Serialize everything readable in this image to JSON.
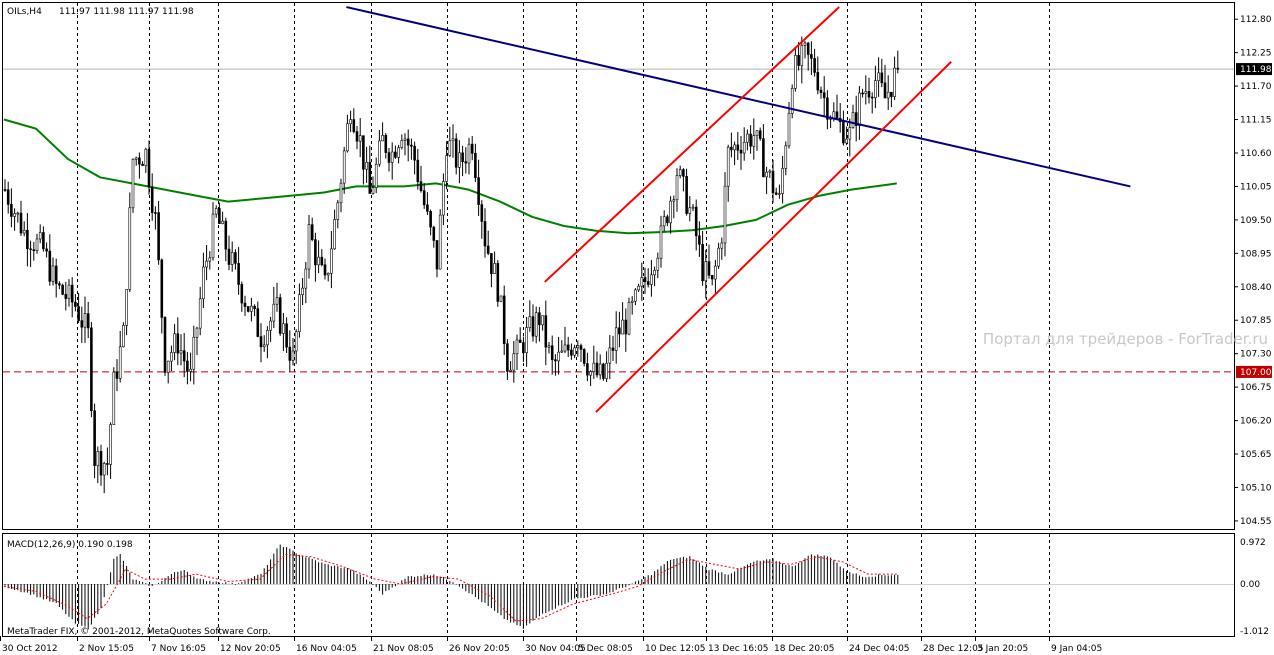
{
  "header": {
    "symbol": "OILs,H4",
    "ohlc": "111.97 111.98 111.97 111.98"
  },
  "macd_header": "MACD(12,26,9) 0.190 0.198",
  "copyright": "MetaTrader FIX, © 2001-2012, MetaQuotes Software Corp.",
  "watermark": "Портал для трейдеров - ForTrader.ru",
  "colors": {
    "background": "#ffffff",
    "candles": "#000000",
    "ma": "#008000",
    "trendline": "#000080",
    "channel": "#ff0000",
    "level": "#c00000",
    "macd_signal": "#ff0000"
  },
  "chart_data": [
    {
      "type": "candlestick",
      "title": "OILs,H4",
      "ylim": [
        104.45,
        113.05
      ],
      "y_ticks": [
        "112.80",
        "112.25",
        "111.70",
        "111.15",
        "110.60",
        "110.05",
        "109.50",
        "108.95",
        "108.40",
        "107.85",
        "107.30",
        "106.75",
        "106.20",
        "105.65",
        "105.10",
        "104.55"
      ],
      "current_price": "111.98",
      "level_line": {
        "label": "107.00",
        "value": 107.0
      },
      "x_ticks": [
        "30 Oct 2012",
        "2 Nov 15:05",
        "7 Nov 16:05",
        "12 Nov 20:05",
        "16 Nov 04:05",
        "21 Nov 08:05",
        "26 Nov 20:05",
        "30 Nov 04:05",
        "5 Dec 08:05",
        "10 Dec 12:05",
        "13 Dec 16:05",
        "18 Dec 20:05",
        "24 Dec 04:05",
        "28 Dec 12:05",
        "3 Jan 20:05",
        "9 Jan 04:05"
      ],
      "close_path": [
        [
          0,
          110.0
        ],
        [
          6,
          109.3
        ],
        [
          12,
          109.0
        ],
        [
          16,
          108.4
        ],
        [
          22,
          108.1
        ],
        [
          26,
          107.6
        ],
        [
          28,
          105.6
        ],
        [
          32,
          105.5
        ],
        [
          34,
          106.8
        ],
        [
          37,
          107.6
        ],
        [
          40,
          110.5
        ],
        [
          44,
          110.6
        ],
        [
          47,
          109.5
        ],
        [
          50,
          107.2
        ],
        [
          54,
          107.5
        ],
        [
          58,
          106.9
        ],
        [
          62,
          108.6
        ],
        [
          66,
          109.6
        ],
        [
          70,
          108.9
        ],
        [
          75,
          108.2
        ],
        [
          80,
          107.6
        ],
        [
          85,
          108.0
        ],
        [
          90,
          107.2
        ],
        [
          95,
          109.3
        ],
        [
          100,
          108.4
        ],
        [
          104,
          109.8
        ],
        [
          108,
          111.4
        ],
        [
          111,
          110.8
        ],
        [
          114,
          109.9
        ],
        [
          118,
          110.8
        ],
        [
          121,
          110.6
        ],
        [
          124,
          111.0
        ],
        [
          128,
          110.5
        ],
        [
          132,
          109.5
        ],
        [
          135,
          108.8
        ],
        [
          138,
          110.8
        ],
        [
          142,
          110.4
        ],
        [
          146,
          110.8
        ],
        [
          150,
          109.2
        ],
        [
          154,
          108.4
        ],
        [
          157,
          107.2
        ],
        [
          160,
          107.3
        ],
        [
          163,
          107.6
        ],
        [
          167,
          107.9
        ],
        [
          171,
          107.1
        ],
        [
          175,
          107.3
        ],
        [
          179,
          107.6
        ],
        [
          183,
          107.0
        ],
        [
          187,
          106.9
        ],
        [
          191,
          107.6
        ],
        [
          195,
          107.9
        ],
        [
          200,
          108.5
        ],
        [
          205,
          109.2
        ],
        [
          210,
          110.3
        ],
        [
          215,
          109.5
        ],
        [
          218,
          108.7
        ],
        [
          221,
          108.4
        ],
        [
          224,
          109.3
        ],
        [
          226,
          110.6
        ],
        [
          230,
          110.8
        ],
        [
          234,
          110.9
        ],
        [
          238,
          110.3
        ],
        [
          242,
          109.8
        ],
        [
          246,
          111.9
        ],
        [
          250,
          112.2
        ],
        [
          253,
          112.0
        ],
        [
          256,
          111.5
        ],
        [
          260,
          111.1
        ],
        [
          264,
          110.9
        ],
        [
          268,
          111.6
        ],
        [
          272,
          111.8
        ],
        [
          275,
          111.5
        ],
        [
          279,
          111.98
        ]
      ],
      "series": [
        {
          "name": "MA",
          "points": [
            [
              0,
              111.15
            ],
            [
              10,
              111.0
            ],
            [
              20,
              110.5
            ],
            [
              30,
              110.2
            ],
            [
              40,
              110.1
            ],
            [
              50,
              110.0
            ],
            [
              60,
              109.9
            ],
            [
              70,
              109.8
            ],
            [
              80,
              109.85
            ],
            [
              90,
              109.9
            ],
            [
              100,
              109.95
            ],
            [
              110,
              110.05
            ],
            [
              115,
              110.05
            ],
            [
              125,
              110.05
            ],
            [
              135,
              110.1
            ],
            [
              145,
              110.0
            ],
            [
              155,
              109.8
            ],
            [
              165,
              109.55
            ],
            [
              175,
              109.4
            ],
            [
              185,
              109.32
            ],
            [
              195,
              109.28
            ],
            [
              205,
              109.3
            ],
            [
              215,
              109.33
            ],
            [
              225,
              109.4
            ],
            [
              235,
              109.5
            ],
            [
              245,
              109.75
            ],
            [
              255,
              109.9
            ],
            [
              265,
              110.0
            ],
            [
              279,
              110.1
            ]
          ]
        },
        {
          "name": "Trendline",
          "points": [
            [
              107,
              113.0
            ],
            [
              352,
              110.05
            ]
          ]
        },
        {
          "name": "Channel upper",
          "points": [
            [
              169,
              108.48
            ],
            [
              261,
              113.0
            ]
          ]
        },
        {
          "name": "Channel lower",
          "points": [
            [
              185,
              106.34
            ],
            [
              296,
              112.1
            ]
          ]
        }
      ]
    },
    {
      "type": "bar",
      "title": "MACD(12,26,9) 0.190 0.198",
      "ylim": [
        -1.012,
        0.972
      ],
      "y_ticks": [
        "0.972",
        "0.00",
        "-1.012"
      ],
      "x_ticks": [
        "30 Oct 2012",
        "2 Nov 15:05",
        "7 Nov 16:05",
        "12 Nov 20:05",
        "16 Nov 04:05",
        "21 Nov 08:05",
        "26 Nov 20:05",
        "30 Nov 04:05",
        "5 Dec 08:05",
        "10 Dec 12:05",
        "13 Dec 16:05",
        "18 Dec 20:05",
        "24 Dec 04:05",
        "28 Dec 12:05",
        "3 Jan 20:05",
        "9 Jan 04:05"
      ],
      "histogram_path": [
        [
          0,
          -0.05
        ],
        [
          8,
          -0.2
        ],
        [
          16,
          -0.4
        ],
        [
          22,
          -0.8
        ],
        [
          26,
          -0.9
        ],
        [
          30,
          -0.5
        ],
        [
          34,
          0.5
        ],
        [
          36,
          0.6
        ],
        [
          40,
          0.1
        ],
        [
          46,
          -0.05
        ],
        [
          52,
          0.2
        ],
        [
          56,
          0.3
        ],
        [
          60,
          0.1
        ],
        [
          66,
          0.05
        ],
        [
          72,
          0.0
        ],
        [
          80,
          0.2
        ],
        [
          86,
          0.8
        ],
        [
          92,
          0.6
        ],
        [
          100,
          0.4
        ],
        [
          108,
          0.3
        ],
        [
          114,
          0.05
        ],
        [
          118,
          -0.2
        ],
        [
          126,
          0.15
        ],
        [
          134,
          0.2
        ],
        [
          140,
          0.05
        ],
        [
          150,
          -0.4
        ],
        [
          156,
          -0.7
        ],
        [
          162,
          -0.9
        ],
        [
          168,
          -0.6
        ],
        [
          178,
          -0.3
        ],
        [
          188,
          -0.2
        ],
        [
          196,
          0.0
        ],
        [
          202,
          0.2
        ],
        [
          208,
          0.5
        ],
        [
          214,
          0.55
        ],
        [
          220,
          0.3
        ],
        [
          226,
          0.2
        ],
        [
          234,
          0.45
        ],
        [
          240,
          0.5
        ],
        [
          246,
          0.35
        ],
        [
          252,
          0.6
        ],
        [
          258,
          0.55
        ],
        [
          262,
          0.3
        ],
        [
          268,
          0.15
        ],
        [
          274,
          0.18
        ],
        [
          279,
          0.19
        ]
      ],
      "signal_path": [
        [
          0,
          -0.05
        ],
        [
          10,
          -0.15
        ],
        [
          20,
          -0.45
        ],
        [
          26,
          -0.7
        ],
        [
          32,
          -0.4
        ],
        [
          38,
          0.3
        ],
        [
          44,
          0.1
        ],
        [
          52,
          0.1
        ],
        [
          60,
          0.2
        ],
        [
          70,
          0.05
        ],
        [
          80,
          0.1
        ],
        [
          88,
          0.6
        ],
        [
          96,
          0.55
        ],
        [
          106,
          0.35
        ],
        [
          116,
          0.1
        ],
        [
          124,
          0.0
        ],
        [
          134,
          0.15
        ],
        [
          142,
          0.1
        ],
        [
          152,
          -0.25
        ],
        [
          160,
          -0.75
        ],
        [
          168,
          -0.7
        ],
        [
          178,
          -0.4
        ],
        [
          190,
          -0.2
        ],
        [
          198,
          -0.05
        ],
        [
          206,
          0.25
        ],
        [
          214,
          0.5
        ],
        [
          222,
          0.4
        ],
        [
          230,
          0.3
        ],
        [
          238,
          0.45
        ],
        [
          246,
          0.4
        ],
        [
          254,
          0.55
        ],
        [
          262,
          0.45
        ],
        [
          270,
          0.2
        ],
        [
          279,
          0.2
        ]
      ]
    }
  ]
}
